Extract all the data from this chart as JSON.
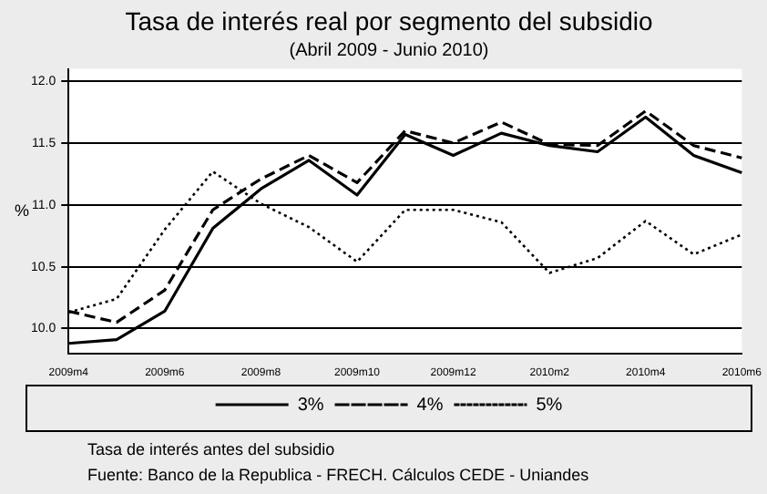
{
  "chart_data": {
    "type": "line",
    "title": "Tasa de interés real por segmento del subsidio",
    "subtitle": "(Abril 2009 - Junio 2010)",
    "ylabel": "%",
    "categories": [
      "2009m4",
      null,
      "2009m6",
      null,
      "2009m8",
      null,
      "2009m10",
      null,
      "2009m12",
      null,
      "2010m2",
      null,
      "2010m4",
      null,
      "2010m6"
    ],
    "series": [
      {
        "name": "3%",
        "color": "#000000",
        "line_style": "solid",
        "values": [
          9.88,
          9.91,
          10.14,
          10.81,
          11.13,
          11.36,
          11.08,
          11.57,
          11.4,
          11.58,
          11.48,
          11.43,
          11.71,
          11.4,
          11.26
        ]
      },
      {
        "name": "4%",
        "color": "#000000",
        "line_style": "dashed",
        "values": [
          10.14,
          10.05,
          10.31,
          10.96,
          11.21,
          11.4,
          11.18,
          11.6,
          11.5,
          11.67,
          11.49,
          11.48,
          11.76,
          11.48,
          11.38
        ]
      },
      {
        "name": "5%",
        "color": "#000000",
        "line_style": "dotted",
        "values": [
          10.13,
          10.24,
          10.8,
          11.27,
          11.01,
          10.82,
          10.54,
          10.96,
          10.96,
          10.86,
          10.45,
          10.57,
          10.87,
          10.6,
          10.76
        ]
      }
    ],
    "ylim": [
      9.8,
      12.1
    ],
    "yticks": [
      {
        "value": 10,
        "label": "10.0"
      },
      {
        "value": 10.5,
        "label": "10.5"
      },
      {
        "value": 11,
        "label": "11.0"
      },
      {
        "value": 11.5,
        "label": "11.5"
      },
      {
        "value": 12,
        "label": "12.0"
      }
    ],
    "grid": "y",
    "legend": "bottom",
    "marker": "none",
    "annotations": [
      "Tasa de interés antes del subsidio",
      "Fuente: Banco de la Republica - FRECH. Cálculos CEDE - Uniandes"
    ]
  }
}
